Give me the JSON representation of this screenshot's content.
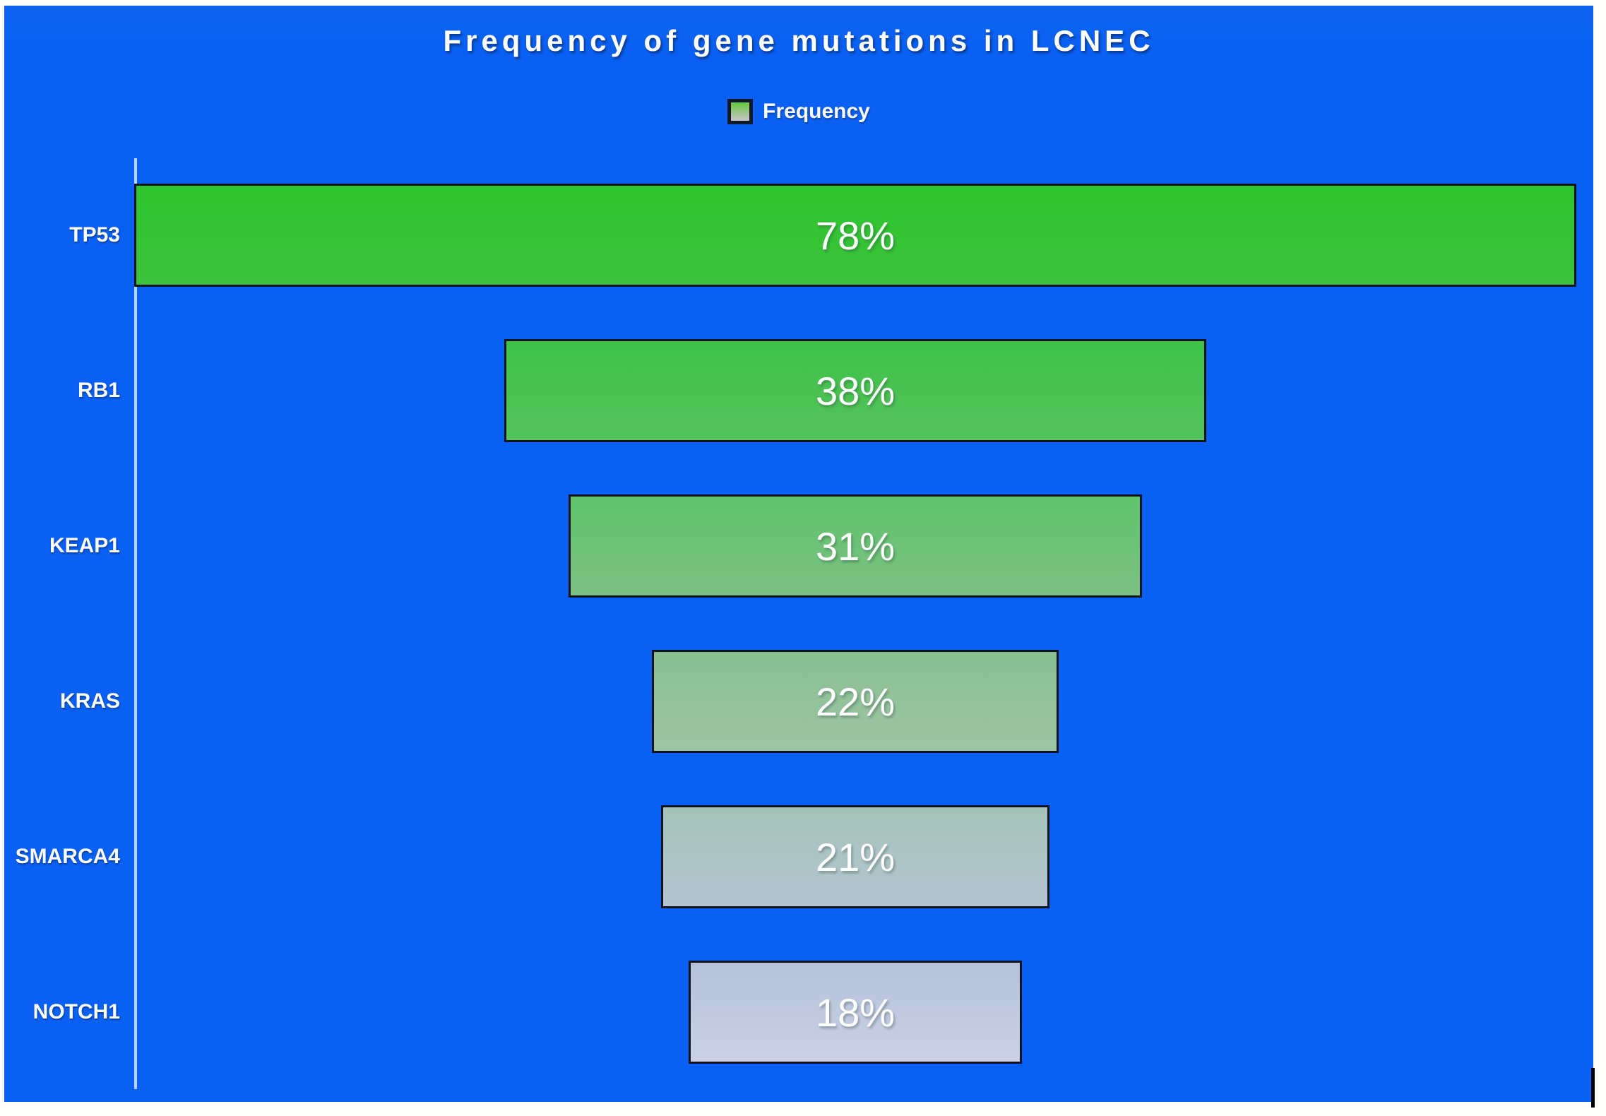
{
  "title": "Frequency of gene mutations in LCNEC",
  "legend": {
    "label": "Frequency"
  },
  "colors": {
    "background": "#0a60f2",
    "bar_border": "#0d1321",
    "axis_line": "#b9d4f0",
    "text": "#ffffff",
    "legend_swatch_top": "#5ecb3a",
    "legend_swatch_bottom": "#c6c4cb"
  },
  "chart_data": {
    "type": "bar",
    "orientation": "horizontal-centered-funnel",
    "title": "Frequency of gene mutations in LCNEC",
    "legend": [
      "Frequency"
    ],
    "legend_position": "top-center",
    "grid": false,
    "xlabel": "",
    "ylabel": "",
    "xlim": [
      0,
      78
    ],
    "categories": [
      "TP53",
      "RB1",
      "KEAP1",
      "KRAS",
      "SMARCA4",
      "NOTCH1"
    ],
    "values": [
      78,
      38,
      31,
      22,
      21,
      18
    ],
    "value_labels": [
      "78%",
      "38%",
      "31%",
      "22%",
      "21%",
      "18%"
    ],
    "bar_colors": [
      {
        "top": "#2dc42d",
        "bottom": "#3cc23c"
      },
      {
        "top": "#3fc348",
        "bottom": "#55c25c"
      },
      {
        "top": "#5fc46b",
        "bottom": "#7cc083"
      },
      {
        "top": "#89bf93",
        "bottom": "#9dc5a3"
      },
      {
        "top": "#a5c3b8",
        "bottom": "#b4c4d1"
      },
      {
        "top": "#b5c1da",
        "bottom": "#cad1e4"
      }
    ]
  }
}
